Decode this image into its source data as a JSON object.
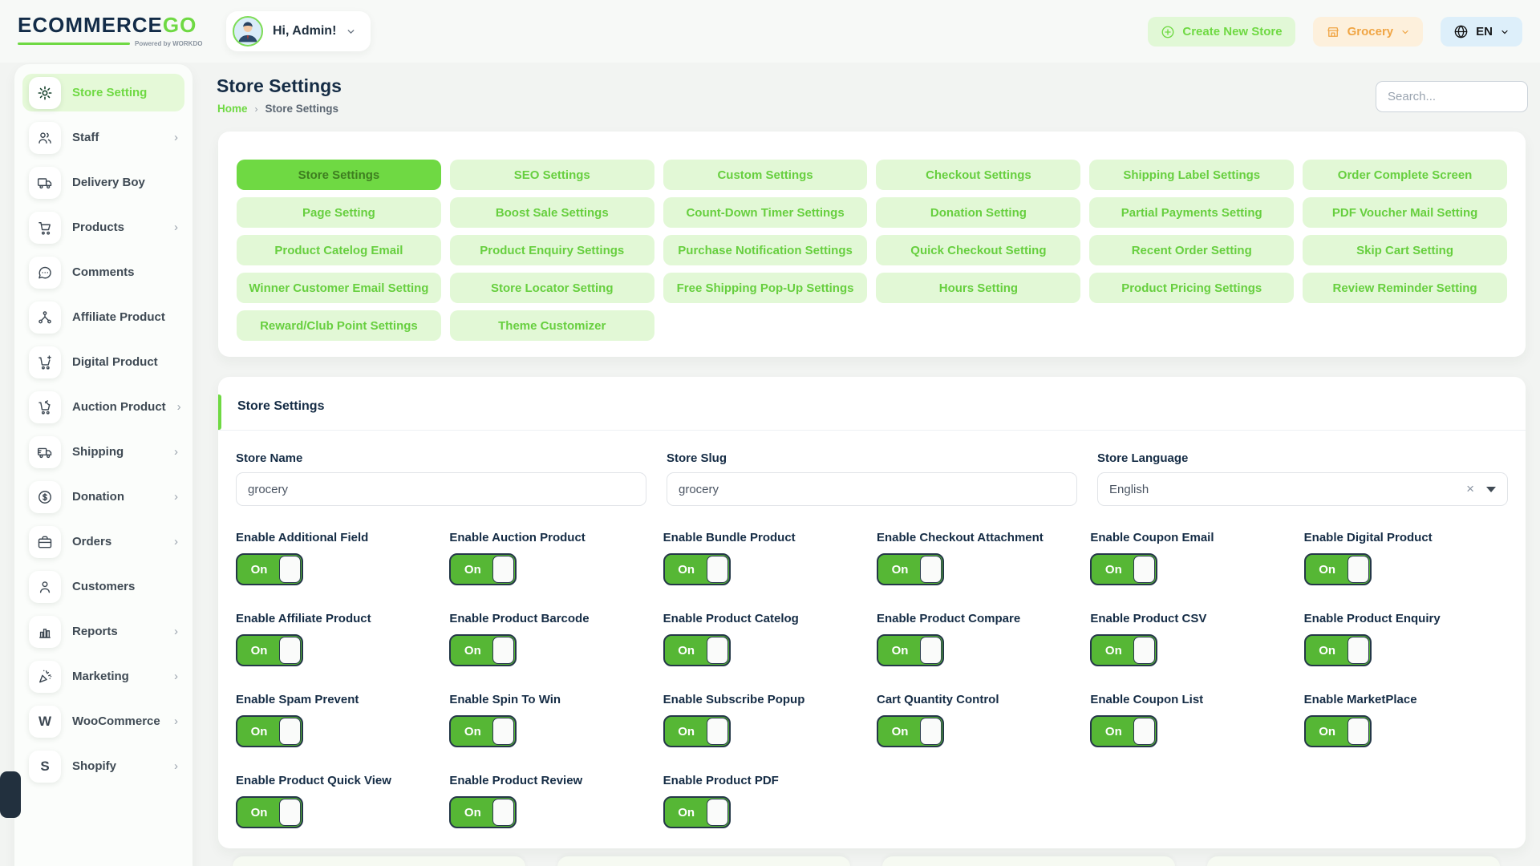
{
  "colors": {
    "primary_green": "#6fd943",
    "tab_inactive_bg": "#e2f8d6",
    "toggle_green": "#56b735",
    "orange": "#f0a544",
    "lang_chip_blue": "#ddeffa",
    "navy_text": "#152c45"
  },
  "header": {
    "logo_main": "ECOMMERCE",
    "logo_accent": "GO",
    "logo_powered": "Powered by WORKDO",
    "greeting": "Hi, Admin!",
    "create_store_label": "Create New Store",
    "store_selector_label": "Grocery",
    "language_label": "EN"
  },
  "page": {
    "title": "Store Settings",
    "breadcrumb_home": "Home",
    "breadcrumb_sep": "›",
    "breadcrumb_current": "Store Settings",
    "search_placeholder": "Search..."
  },
  "sidebar": {
    "items": [
      {
        "label": "Store Setting",
        "icon": "gear-icon",
        "active": true,
        "chevron": false
      },
      {
        "label": "Staff",
        "icon": "users-icon",
        "active": false,
        "chevron": true
      },
      {
        "label": "Delivery Boy",
        "icon": "delivery-truck-icon",
        "active": false,
        "chevron": false
      },
      {
        "label": "Products",
        "icon": "cart-icon",
        "active": false,
        "chevron": true
      },
      {
        "label": "Comments",
        "icon": "chat-icon",
        "active": false,
        "chevron": false
      },
      {
        "label": "Affiliate Product",
        "icon": "network-icon",
        "active": false,
        "chevron": false
      },
      {
        "label": "Digital Product",
        "icon": "cart-plus-icon",
        "active": false,
        "chevron": false
      },
      {
        "label": "Auction Product",
        "icon": "auction-cart-icon",
        "active": false,
        "chevron": true
      },
      {
        "label": "Shipping",
        "icon": "shipping-truck-icon",
        "active": false,
        "chevron": true
      },
      {
        "label": "Donation",
        "icon": "dollar-circle-icon",
        "active": false,
        "chevron": true
      },
      {
        "label": "Orders",
        "icon": "briefcase-icon",
        "active": false,
        "chevron": true
      },
      {
        "label": "Customers",
        "icon": "user-icon",
        "active": false,
        "chevron": false
      },
      {
        "label": "Reports",
        "icon": "bar-chart-icon",
        "active": false,
        "chevron": true
      },
      {
        "label": "Marketing",
        "icon": "megaphone-icon",
        "active": false,
        "chevron": true
      },
      {
        "label": "WooCommerce",
        "icon": "letter-w-icon",
        "active": false,
        "chevron": true
      },
      {
        "label": "Shopify",
        "icon": "letter-s-icon",
        "active": false,
        "chevron": true
      }
    ]
  },
  "tabs": {
    "items": [
      {
        "label": "Store Settings",
        "active": true
      },
      {
        "label": "SEO Settings",
        "active": false
      },
      {
        "label": "Custom Settings",
        "active": false
      },
      {
        "label": "Checkout Settings",
        "active": false
      },
      {
        "label": "Shipping Label Settings",
        "active": false
      },
      {
        "label": "Order Complete Screen",
        "active": false
      },
      {
        "label": "Page Setting",
        "active": false
      },
      {
        "label": "Boost Sale Settings",
        "active": false
      },
      {
        "label": "Count-Down Timer Settings",
        "active": false
      },
      {
        "label": "Donation Setting",
        "active": false
      },
      {
        "label": "Partial Payments Setting",
        "active": false
      },
      {
        "label": "PDF Voucher Mail Setting",
        "active": false
      },
      {
        "label": "Product Catelog Email",
        "active": false
      },
      {
        "label": "Product Enquiry Settings",
        "active": false
      },
      {
        "label": "Purchase Notification Settings",
        "active": false
      },
      {
        "label": "Quick Checkout Setting",
        "active": false
      },
      {
        "label": "Recent Order Setting",
        "active": false
      },
      {
        "label": "Skip Cart Setting",
        "active": false
      },
      {
        "label": "Winner Customer Email Setting",
        "active": false
      },
      {
        "label": "Store Locator Setting",
        "active": false
      },
      {
        "label": "Free Shipping Pop-Up Settings",
        "active": false
      },
      {
        "label": "Hours Setting",
        "active": false
      },
      {
        "label": "Product Pricing Settings",
        "active": false
      },
      {
        "label": "Review Reminder Setting",
        "active": false
      },
      {
        "label": "Reward/Club Point Settings",
        "active": false
      },
      {
        "label": "Theme Customizer",
        "active": false
      }
    ]
  },
  "settings": {
    "section_title": "Store Settings",
    "fields": [
      {
        "label": "Store Name",
        "value": "grocery"
      },
      {
        "label": "Store Slug",
        "value": "grocery"
      },
      {
        "label": "Store Language",
        "value": "English"
      }
    ],
    "toggles": [
      {
        "label": "Enable Additional Field",
        "state": "On"
      },
      {
        "label": "Enable Auction Product",
        "state": "On"
      },
      {
        "label": "Enable Bundle Product",
        "state": "On"
      },
      {
        "label": "Enable Checkout Attachment",
        "state": "On"
      },
      {
        "label": "Enable Coupon Email",
        "state": "On"
      },
      {
        "label": "Enable Digital Product",
        "state": "On"
      },
      {
        "label": "Enable Affiliate Product",
        "state": "On"
      },
      {
        "label": "Enable Product Barcode",
        "state": "On"
      },
      {
        "label": "Enable Product Catelog",
        "state": "On"
      },
      {
        "label": "Enable Product Compare",
        "state": "On"
      },
      {
        "label": "Enable Product CSV",
        "state": "On"
      },
      {
        "label": "Enable Product Enquiry",
        "state": "On"
      },
      {
        "label": "Enable Spam Prevent",
        "state": "On"
      },
      {
        "label": "Enable Spin To Win",
        "state": "On"
      },
      {
        "label": "Enable Subscribe Popup",
        "state": "On"
      },
      {
        "label": "Cart Quantity Control",
        "state": "On"
      },
      {
        "label": "Enable Coupon List",
        "state": "On"
      },
      {
        "label": "Enable MarketPlace",
        "state": "On"
      },
      {
        "label": "Enable Product Quick View",
        "state": "On"
      },
      {
        "label": "Enable Product Review",
        "state": "On"
      },
      {
        "label": "Enable Product PDF",
        "state": "On"
      }
    ]
  }
}
